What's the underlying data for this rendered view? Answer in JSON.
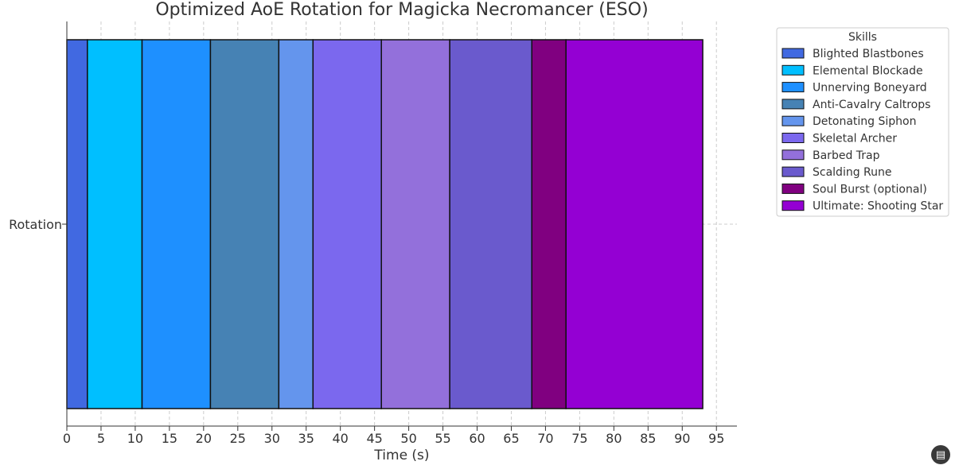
{
  "chart_data": {
    "type": "bar",
    "orientation": "horizontal-stacked",
    "title": "Optimized AoE Rotation for Magicka Necromancer (ESO)",
    "xlabel": "Time (s)",
    "categories": [
      "Rotation"
    ],
    "xlim": [
      0,
      98
    ],
    "xticks": [
      0,
      5,
      10,
      15,
      20,
      25,
      30,
      35,
      40,
      45,
      50,
      55,
      60,
      65,
      70,
      75,
      80,
      85,
      90,
      95
    ],
    "grid": true,
    "legend_title": "Skills",
    "legend_position": "outside-right",
    "series": [
      {
        "name": "Blighted Blastbones",
        "start": 0,
        "duration": 3,
        "color": "#4169E1"
      },
      {
        "name": "Elemental Blockade",
        "start": 3,
        "duration": 8,
        "color": "#00BFFF"
      },
      {
        "name": "Unnerving Boneyard",
        "start": 11,
        "duration": 10,
        "color": "#1E90FF"
      },
      {
        "name": "Anti-Cavalry Caltrops",
        "start": 21,
        "duration": 10,
        "color": "#4682B4"
      },
      {
        "name": "Detonating Siphon",
        "start": 31,
        "duration": 5,
        "color": "#6495ED"
      },
      {
        "name": "Skeletal Archer",
        "start": 36,
        "duration": 10,
        "color": "#7B68EE"
      },
      {
        "name": "Barbed Trap",
        "start": 46,
        "duration": 10,
        "color": "#9370DB"
      },
      {
        "name": "Scalding Rune",
        "start": 56,
        "duration": 12,
        "color": "#6A5ACD"
      },
      {
        "name": "Soul Burst (optional)",
        "start": 68,
        "duration": 5,
        "color": "#800080"
      },
      {
        "name": "Ultimate: Shooting Star",
        "start": 73,
        "duration": 20,
        "color": "#9400D3"
      }
    ]
  },
  "corner_icon": "chat-icon"
}
